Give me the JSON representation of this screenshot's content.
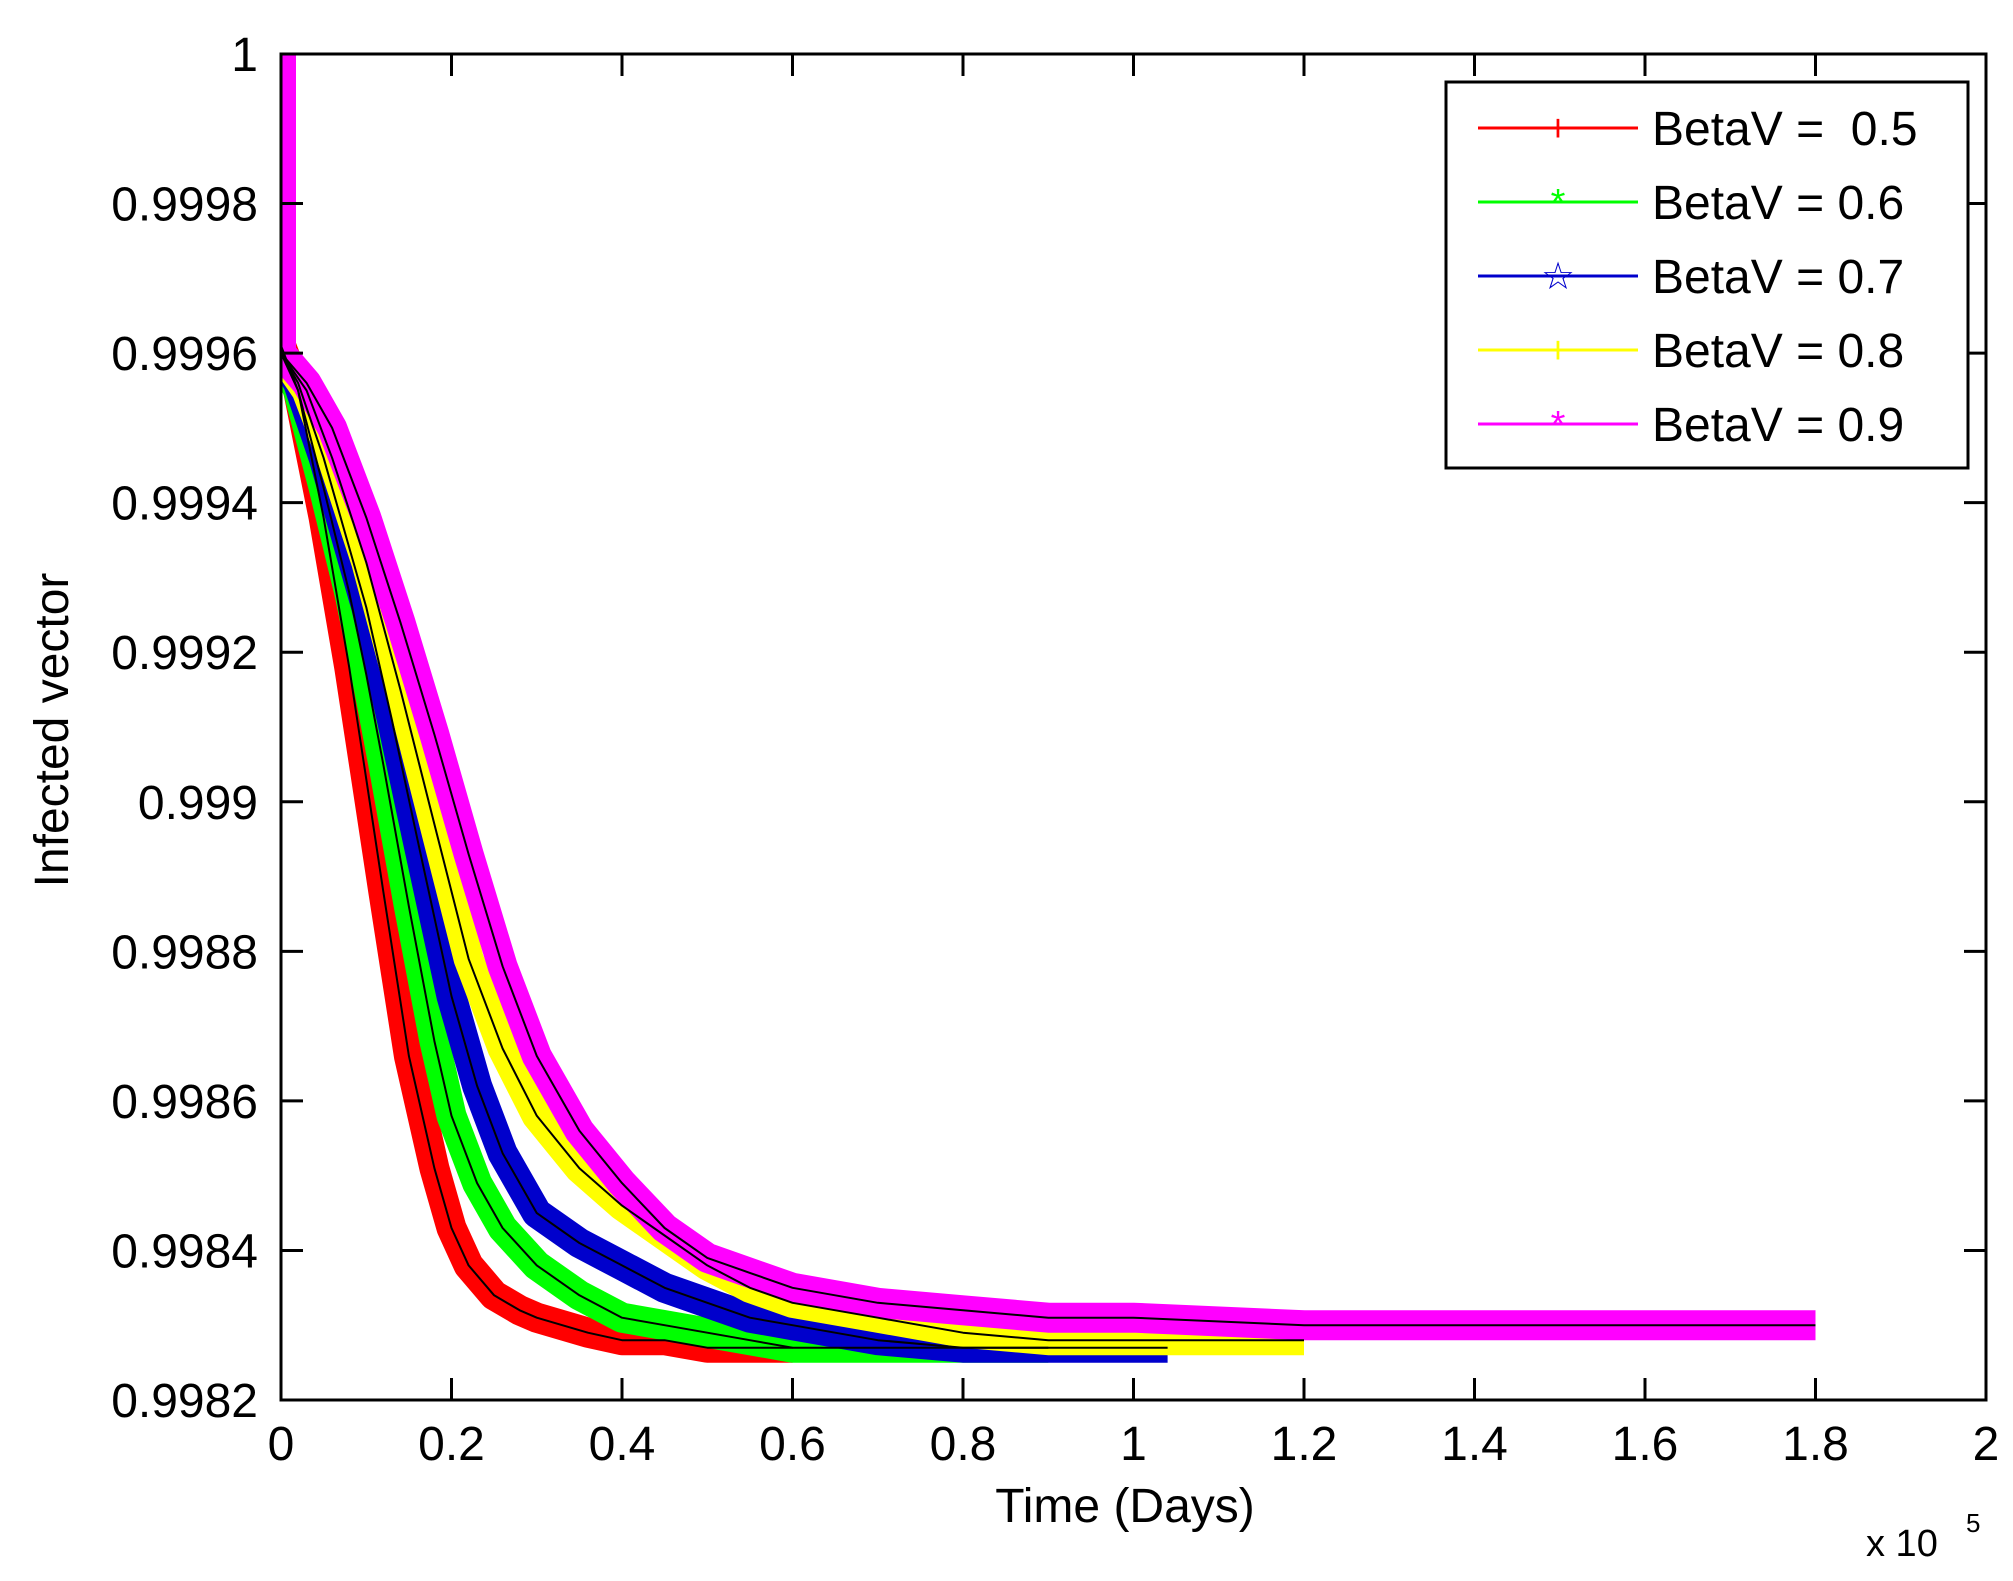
{
  "chart_data": {
    "type": "line",
    "title": "",
    "xlabel": "Time (Days)",
    "ylabel": "Infected vector",
    "x_multiplier_label": "x 10",
    "x_multiplier_exponent": "5",
    "xlim": [
      0,
      2
    ],
    "ylim": [
      0.9982,
      1.0
    ],
    "xticks": [
      0,
      0.2,
      0.4,
      0.6,
      0.8,
      1.0,
      1.2,
      1.4,
      1.6,
      1.8,
      2.0
    ],
    "xtick_labels": [
      "0",
      "0.2",
      "0.4",
      "0.6",
      "0.8",
      "1",
      "1.2",
      "1.4",
      "1.6",
      "1.8",
      "2"
    ],
    "yticks": [
      0.9982,
      0.9984,
      0.9986,
      0.9988,
      0.999,
      0.9992,
      0.9994,
      0.9996,
      0.9998,
      1.0
    ],
    "ytick_labels": [
      "0.9982",
      "0.9984",
      "0.9986",
      "0.9988",
      "0.999",
      "0.9992",
      "0.9994",
      "0.9996",
      "0.9998",
      "1"
    ],
    "legend_position": "top-right",
    "grid": false,
    "series": [
      {
        "name": "BetaV =  0.5",
        "color": "#ff0000",
        "marker": "+",
        "x": [
          0.0,
          0.0,
          0.02,
          0.05,
          0.08,
          0.1,
          0.12,
          0.15,
          0.18,
          0.2,
          0.22,
          0.25,
          0.28,
          0.3,
          0.33,
          0.36,
          0.4,
          0.45,
          0.5,
          0.55,
          0.6
        ],
        "y": [
          1.0,
          0.99961,
          0.99955,
          0.99938,
          0.99918,
          0.99903,
          0.99888,
          0.99866,
          0.99851,
          0.99843,
          0.99838,
          0.99834,
          0.99832,
          0.99831,
          0.9983,
          0.99829,
          0.99828,
          0.99828,
          0.99827,
          0.99827,
          0.99827
        ]
      },
      {
        "name": "BetaV = 0.6",
        "color": "#00ff00",
        "marker": "*",
        "x": [
          0.0,
          0.0,
          0.02,
          0.05,
          0.08,
          0.1,
          0.12,
          0.15,
          0.18,
          0.2,
          0.23,
          0.26,
          0.3,
          0.35,
          0.4,
          0.45,
          0.5,
          0.55,
          0.6,
          0.7,
          0.8,
          0.9
        ],
        "y": [
          1.0,
          0.9996,
          0.99955,
          0.99942,
          0.99928,
          0.99917,
          0.99905,
          0.99886,
          0.99868,
          0.99858,
          0.99849,
          0.99843,
          0.99838,
          0.99834,
          0.99831,
          0.9983,
          0.99829,
          0.99828,
          0.99827,
          0.99827,
          0.99827,
          0.99827
        ]
      },
      {
        "name": "BetaV = 0.7",
        "color": "#0000cc",
        "marker": "☆",
        "x": [
          0.0,
          0.0,
          0.02,
          0.05,
          0.08,
          0.1,
          0.13,
          0.16,
          0.2,
          0.23,
          0.26,
          0.3,
          0.35,
          0.4,
          0.45,
          0.5,
          0.55,
          0.6,
          0.7,
          0.8,
          0.9,
          1.04
        ],
        "y": [
          1.0,
          0.9996,
          0.99956,
          0.99946,
          0.99934,
          0.99926,
          0.99911,
          0.99895,
          0.99874,
          0.99862,
          0.99853,
          0.99845,
          0.99841,
          0.99838,
          0.99835,
          0.99833,
          0.99831,
          0.9983,
          0.99828,
          0.99827,
          0.99827,
          0.99827
        ]
      },
      {
        "name": "BetaV = 0.8",
        "color": "#ffff00",
        "marker": "+",
        "x": [
          0.0,
          0.0,
          0.03,
          0.06,
          0.1,
          0.14,
          0.18,
          0.22,
          0.26,
          0.3,
          0.35,
          0.4,
          0.45,
          0.5,
          0.55,
          0.6,
          0.7,
          0.8,
          0.9,
          1.0,
          1.1,
          1.2
        ],
        "y": [
          1.0,
          0.9996,
          0.99955,
          0.99946,
          0.99932,
          0.99915,
          0.99897,
          0.99879,
          0.99867,
          0.99858,
          0.99851,
          0.99846,
          0.99842,
          0.99838,
          0.99835,
          0.99833,
          0.99831,
          0.99829,
          0.99828,
          0.99828,
          0.99828,
          0.99828
        ]
      },
      {
        "name": "BetaV = 0.9",
        "color": "#ff00ff",
        "marker": "*",
        "x": [
          0.0,
          0.0,
          0.03,
          0.06,
          0.1,
          0.14,
          0.18,
          0.22,
          0.26,
          0.3,
          0.35,
          0.4,
          0.45,
          0.5,
          0.55,
          0.6,
          0.7,
          0.8,
          0.9,
          1.0,
          1.2,
          1.4,
          1.6,
          1.8
        ],
        "y": [
          1.0,
          0.9996,
          0.99956,
          0.9995,
          0.99938,
          0.99924,
          0.99909,
          0.99893,
          0.99878,
          0.99866,
          0.99856,
          0.99849,
          0.99843,
          0.99839,
          0.99837,
          0.99835,
          0.99833,
          0.99832,
          0.99831,
          0.99831,
          0.9983,
          0.9983,
          0.9983,
          0.9983
        ]
      }
    ]
  }
}
